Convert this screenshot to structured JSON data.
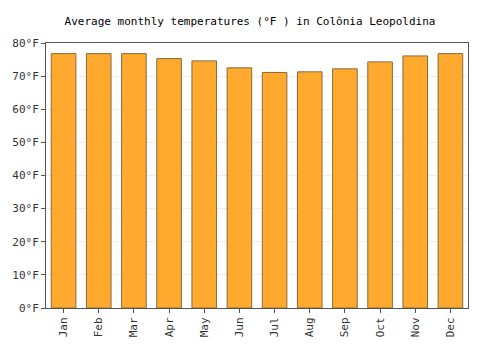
{
  "chart_data": {
    "type": "bar",
    "title": "Average monthly temperatures (°F ) in Colônia Leopoldina",
    "categories": [
      "Jan",
      "Feb",
      "Mar",
      "Apr",
      "May",
      "Jun",
      "Jul",
      "Aug",
      "Sep",
      "Oct",
      "Nov",
      "Dec"
    ],
    "values": [
      76.8,
      76.8,
      76.8,
      75.3,
      74.6,
      72.5,
      71.1,
      71.3,
      72.2,
      74.3,
      76.1,
      76.8
    ],
    "color": "#ffa92e",
    "ylim": [
      0,
      80
    ],
    "yticks": [
      {
        "value": 0,
        "label": "0°F"
      },
      {
        "value": 10,
        "label": "10°F"
      },
      {
        "value": 20,
        "label": "20°F"
      },
      {
        "value": 30,
        "label": "30°F"
      },
      {
        "value": 40,
        "label": "40°F"
      },
      {
        "value": 50,
        "label": "50°F"
      },
      {
        "value": 60,
        "label": "60°F"
      },
      {
        "value": 70,
        "label": "70°F"
      },
      {
        "value": 80,
        "label": "80°F"
      }
    ],
    "grid": true
  }
}
